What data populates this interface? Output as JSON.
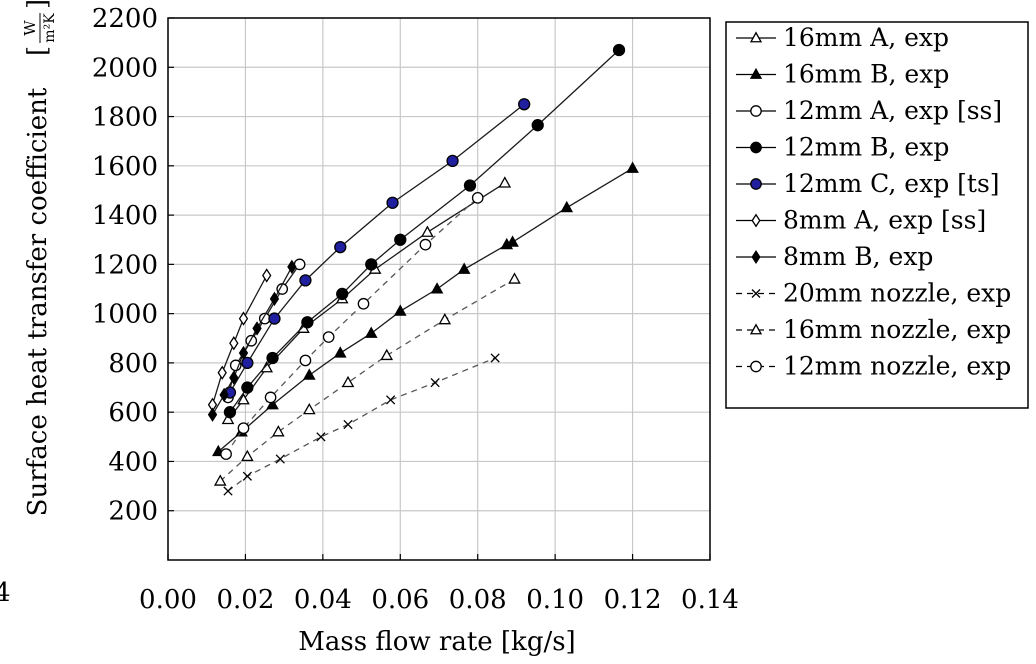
{
  "page": {
    "margin_text": "4"
  },
  "chart_data": {
    "type": "line",
    "title": "",
    "xlabel": "Mass flow rate [kg/s]",
    "ylabel": "Surface heat transfer coefficient",
    "ylabel_unit": {
      "open": "[",
      "numerator": "W",
      "denominator": "m²K",
      "close": "]"
    },
    "xlim": [
      0,
      0.14
    ],
    "ylim": [
      0,
      2200
    ],
    "xticks": [
      "0.00",
      "0.02",
      "0.04",
      "0.06",
      "0.08",
      "0.10",
      "0.12",
      "0.14"
    ],
    "yticks": [
      "200",
      "400",
      "600",
      "800",
      "1000",
      "1200",
      "1400",
      "1600",
      "1800",
      "2000",
      "2200"
    ],
    "grid": true,
    "legend_position": "right",
    "series": [
      {
        "name": "16mm A, exp",
        "marker": "triangle",
        "fill": "#ffffff",
        "dashed": false,
        "x": [
          0.0155,
          0.0195,
          0.0255,
          0.035,
          0.045,
          0.0535,
          0.067,
          0.087
        ],
        "y": [
          570,
          650,
          780,
          940,
          1060,
          1180,
          1330,
          1530
        ]
      },
      {
        "name": "16mm B, exp",
        "marker": "triangle",
        "fill": "#000000",
        "dashed": false,
        "x": [
          0.013,
          0.019,
          0.027,
          0.0365,
          0.0445,
          0.0525,
          0.06,
          0.0695,
          0.0765,
          0.0875,
          0.089,
          0.103,
          0.12
        ],
        "y": [
          440,
          520,
          630,
          750,
          840,
          920,
          1010,
          1100,
          1180,
          1280,
          1290,
          1430,
          1590
        ]
      },
      {
        "name": "12mm A, exp [ss]",
        "marker": "circle",
        "fill": "#ffffff",
        "dashed": false,
        "x": [
          0.0155,
          0.0175,
          0.0215,
          0.025,
          0.0295,
          0.034
        ],
        "y": [
          660,
          790,
          890,
          980,
          1100,
          1200
        ]
      },
      {
        "name": "12mm B, exp",
        "marker": "circle",
        "fill": "#000000",
        "dashed": false,
        "x": [
          0.016,
          0.0205,
          0.027,
          0.036,
          0.045,
          0.0525,
          0.06,
          0.078,
          0.0955,
          0.1165
        ],
        "y": [
          600,
          700,
          820,
          965,
          1080,
          1200,
          1300,
          1520,
          1765,
          2070
        ]
      },
      {
        "name": "12mm C, exp [ts]",
        "marker": "circle",
        "fill": "#1f1fa0",
        "dashed": false,
        "x": [
          0.016,
          0.0205,
          0.0275,
          0.0355,
          0.0445,
          0.058,
          0.0735,
          0.092
        ],
        "y": [
          680,
          800,
          980,
          1135,
          1270,
          1450,
          1620,
          1850
        ]
      },
      {
        "name": "8mm A, exp [ss]",
        "marker": "diamond",
        "fill": "#ffffff",
        "dashed": false,
        "x": [
          0.0115,
          0.014,
          0.017,
          0.0195,
          0.0255
        ],
        "y": [
          630,
          760,
          880,
          980,
          1155
        ]
      },
      {
        "name": "8mm B, exp",
        "marker": "diamond",
        "fill": "#000000",
        "dashed": false,
        "x": [
          0.0115,
          0.0145,
          0.017,
          0.0195,
          0.023,
          0.0275,
          0.032
        ],
        "y": [
          590,
          670,
          740,
          840,
          940,
          1060,
          1190
        ]
      },
      {
        "name": "20mm nozzle, exp",
        "marker": "x",
        "fill": "none",
        "dashed": true,
        "x": [
          0.0155,
          0.0205,
          0.029,
          0.0395,
          0.0465,
          0.0575,
          0.069,
          0.0845
        ],
        "y": [
          280,
          340,
          410,
          500,
          550,
          650,
          720,
          820
        ]
      },
      {
        "name": "16mm nozzle, exp",
        "marker": "triangle",
        "fill": "#ffffff",
        "dashed": true,
        "x": [
          0.0135,
          0.0205,
          0.0285,
          0.0365,
          0.0465,
          0.0565,
          0.0715,
          0.0895
        ],
        "y": [
          320,
          420,
          520,
          610,
          720,
          830,
          975,
          1140
        ]
      },
      {
        "name": "12mm nozzle, exp",
        "marker": "circle",
        "fill": "#ffffff",
        "dashed": true,
        "x": [
          0.015,
          0.0195,
          0.0265,
          0.0355,
          0.0415,
          0.0505,
          0.0665,
          0.08
        ],
        "y": [
          430,
          535,
          660,
          810,
          905,
          1040,
          1280,
          1470
        ]
      }
    ]
  }
}
